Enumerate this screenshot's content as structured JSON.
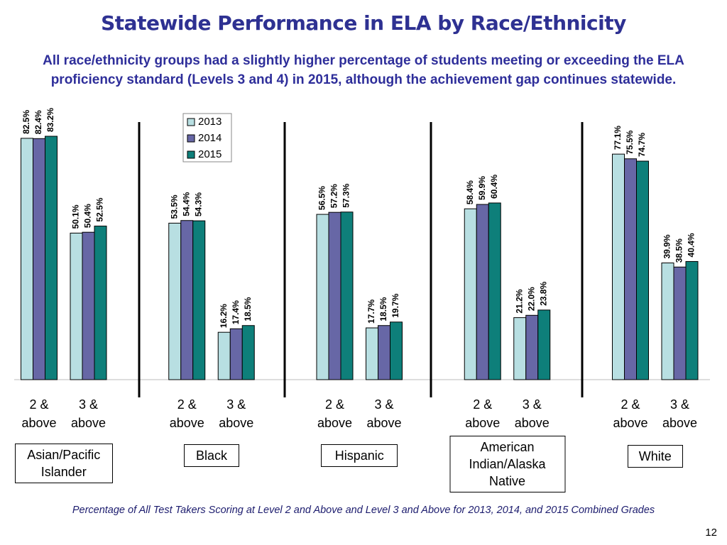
{
  "chart_data": {
    "type": "bar",
    "title": "Statewide Performance in ELA by Race/Ethnicity",
    "subtitle": "All race/ethnicity groups had a slightly higher percentage of students meeting or exceeding the ELA proficiency standard (Levels 3 and 4) in 2015, although the achievement gap continues statewide.",
    "footnote": "Percentage of All Test Takers Scoring at Level 2 and Above and Level 3 and Above for 2013, 2014, and 2015 Combined Grades",
    "categories": [
      "2 & above",
      "3 & above",
      "2 & above",
      "3 & above",
      "2 & above",
      "3 & above",
      "2 & above",
      "3 & above",
      "2 & above",
      "3 & above"
    ],
    "groups": [
      "Asian/Pacific Islander",
      "Black",
      "Hispanic",
      "American Indian/Alaska Native",
      "White"
    ],
    "series": [
      {
        "name": "2013",
        "color": "#b8dfe2",
        "values": [
          82.5,
          50.1,
          53.5,
          16.2,
          56.5,
          17.7,
          58.4,
          21.2,
          77.1,
          39.9
        ],
        "value_labels": [
          "82.5%",
          "50.1%",
          "53.5%",
          "16.2%",
          "56.5%",
          "17.7%",
          "58.4%",
          "21.2%",
          "77.1%",
          "39.9%"
        ]
      },
      {
        "name": "2014",
        "color": "#6767a6",
        "values": [
          82.4,
          50.4,
          54.4,
          17.4,
          57.2,
          18.5,
          59.9,
          22.0,
          75.5,
          38.5
        ],
        "value_labels": [
          "82.4%",
          "50.4%",
          "54.4%",
          "17.4%",
          "57.2%",
          "18.5%",
          "59.9%",
          "22.0%",
          "75.5%",
          "38.5%"
        ]
      },
      {
        "name": "2015",
        "color": "#0e7f7a",
        "values": [
          83.2,
          52.5,
          54.3,
          18.5,
          57.3,
          19.7,
          60.4,
          23.8,
          74.7,
          40.4
        ],
        "value_labels": [
          "83.2%",
          "52.5%",
          "54.3%",
          "18.5%",
          "57.3%",
          "19.7%",
          "60.4%",
          "23.8%",
          "74.7%",
          "40.4%"
        ]
      }
    ],
    "legend": "top-left"
  },
  "page_number": 12
}
